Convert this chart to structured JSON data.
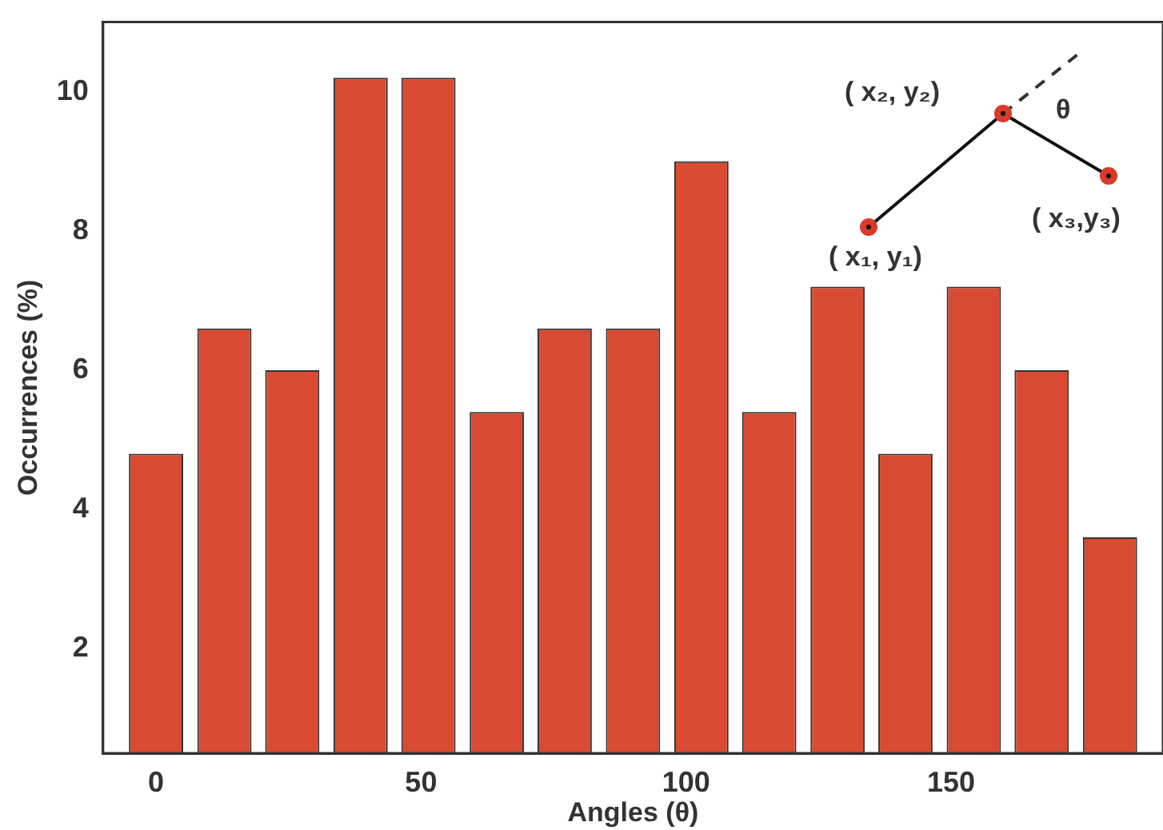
{
  "chart_data": {
    "type": "bar",
    "xlabel": "Angles (θ)",
    "ylabel": "Occurrences (%)",
    "x": [
      0,
      12.9,
      25.7,
      38.6,
      51.4,
      64.3,
      77.1,
      90,
      102.9,
      115.7,
      128.6,
      141.4,
      154.3,
      167.1,
      180
    ],
    "values": [
      4.8,
      6.6,
      6.0,
      10.2,
      10.2,
      5.4,
      6.6,
      6.6,
      9.0,
      5.4,
      7.2,
      4.8,
      7.2,
      6.0,
      3.6
    ],
    "color": "#d94a33",
    "xlim": [
      -10,
      190
    ],
    "xticks": [
      0,
      50,
      100,
      150
    ],
    "ylim": [
      0.5,
      11
    ],
    "yticks": [
      2,
      4,
      6,
      8,
      10
    ],
    "grid": false,
    "legend": false,
    "annotations": [
      "( x₂, y₂)",
      "θ",
      "( x₃,y₃)",
      "( x₁, y₁)"
    ]
  }
}
